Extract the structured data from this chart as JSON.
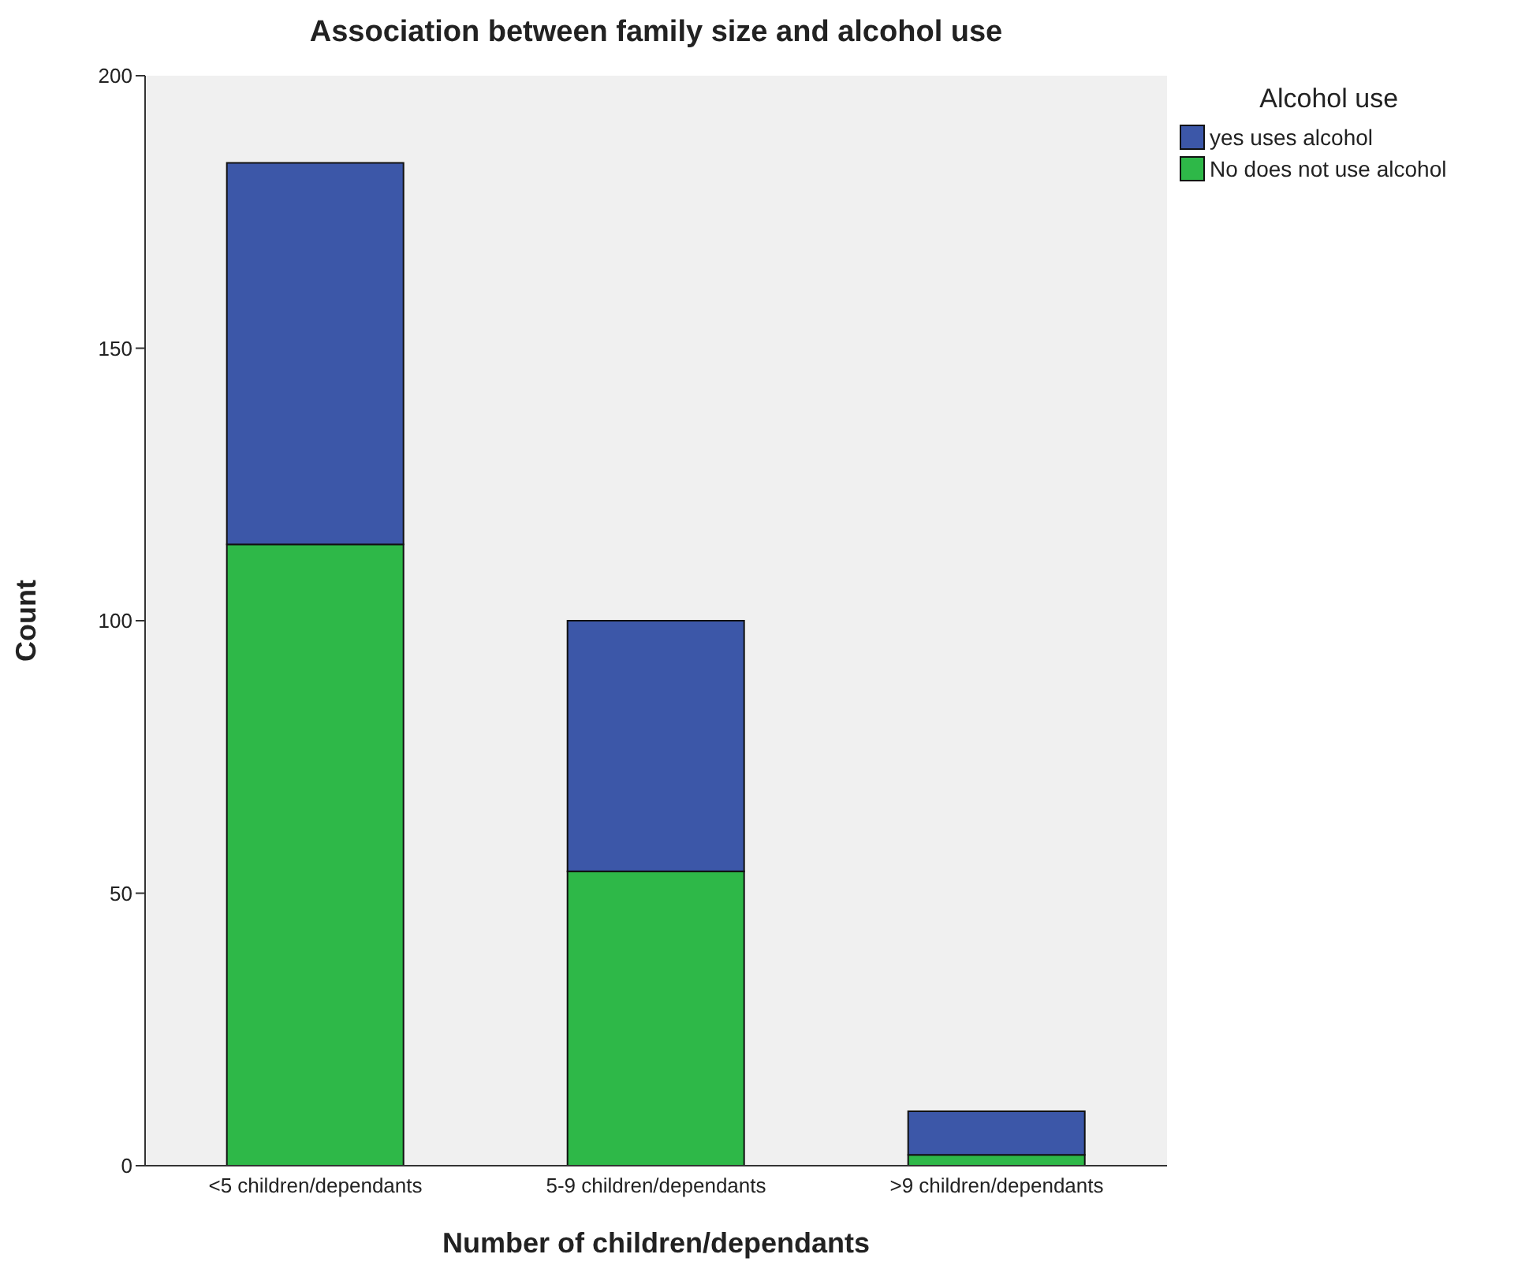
{
  "chart_data": {
    "type": "bar",
    "title": "Association between family size and alcohol use",
    "categories": [
      "<5 children/dependants",
      "5-9 children/dependants",
      ">9 children/dependants"
    ],
    "xlabel": "Number of children/dependants",
    "ylabel": "Count",
    "legend_title": "Alcohol use",
    "stacked": true,
    "legend": "top right",
    "grid": false,
    "ylim": [
      0,
      200
    ],
    "yticks": [
      0,
      50,
      100,
      150,
      200
    ],
    "series": [
      {
        "name": "No does not use alcohol",
        "color": "#2eb848",
        "values": [
          114,
          54,
          2
        ]
      },
      {
        "name": "yes uses alcohol",
        "color": "#3c57a8",
        "values": [
          70,
          46,
          8
        ]
      }
    ]
  }
}
